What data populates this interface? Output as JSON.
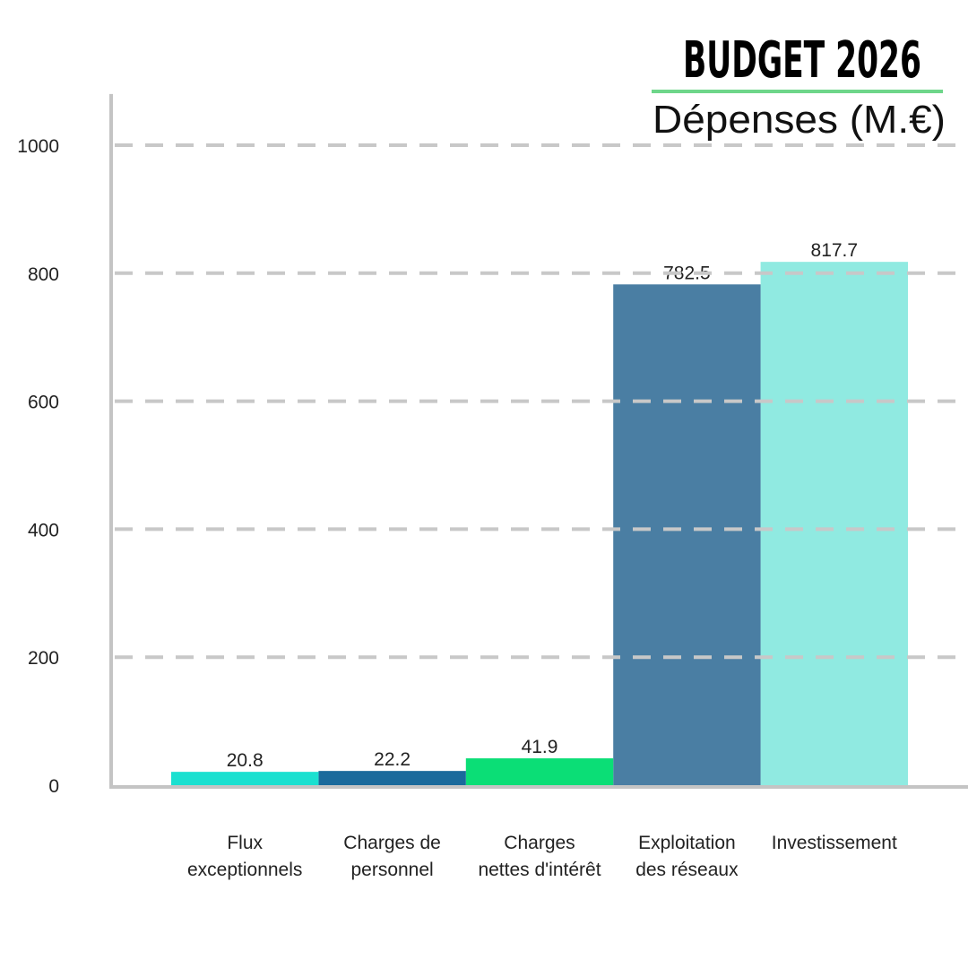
{
  "title": "BUDGET 2026",
  "subtitle": "Dépenses (M.€)",
  "chart_data": {
    "type": "bar",
    "title": "BUDGET 2026",
    "subtitle": "Dépenses (M.€)",
    "categories": [
      [
        "Flux",
        "exceptionnels"
      ],
      [
        "Charges de",
        "personnel"
      ],
      [
        "Charges",
        "nettes d'intérêt"
      ],
      [
        "Exploitation",
        "des réseaux"
      ],
      [
        "Investissement"
      ]
    ],
    "values": [
      20.8,
      22.2,
      41.9,
      782.5,
      817.7
    ],
    "data_labels": [
      "20.8",
      "22.2",
      "41.9",
      "782.5",
      "817.7"
    ],
    "colors": [
      "#1ae0d0",
      "#1a6a9c",
      "#0bde76",
      "#4a7ea3",
      "#90eae1"
    ],
    "ylim": [
      0,
      1080
    ],
    "yticks": [
      0,
      200,
      400,
      600,
      800,
      1000
    ],
    "grid": true,
    "grid_style": "dashed",
    "accent_color": "#6ed68a",
    "legend": "none"
  }
}
